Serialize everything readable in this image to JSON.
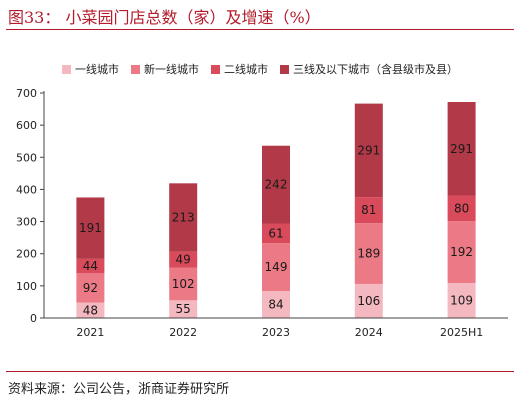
{
  "header": {
    "title": "图33：  小菜园门店总数（家）及增速（%）"
  },
  "footer": {
    "source": "资料来源：公司公告，浙商证券研究所"
  },
  "colors": {
    "accent": "#b31b2b",
    "series": [
      "#f4b8c0",
      "#ec7a86",
      "#d94a5a",
      "#b23a48"
    ]
  },
  "chart_data": {
    "type": "bar",
    "stacked": true,
    "title": "",
    "xlabel": "",
    "ylabel": "",
    "categories": [
      "2021",
      "2022",
      "2023",
      "2024",
      "2025H1"
    ],
    "ylim": [
      0,
      700
    ],
    "yticks": [
      0,
      100,
      200,
      300,
      400,
      500,
      600,
      700
    ],
    "legend_position": "top",
    "grid": false,
    "series": [
      {
        "name": "一线城市",
        "values": [
          48,
          55,
          84,
          106,
          109
        ]
      },
      {
        "name": "新一线城市",
        "values": [
          92,
          102,
          149,
          189,
          192
        ]
      },
      {
        "name": "二线城市",
        "values": [
          44,
          49,
          61,
          81,
          80
        ]
      },
      {
        "name": "三线及以下城市（含县级市及县）",
        "values": [
          191,
          213,
          242,
          291,
          291
        ]
      }
    ]
  }
}
